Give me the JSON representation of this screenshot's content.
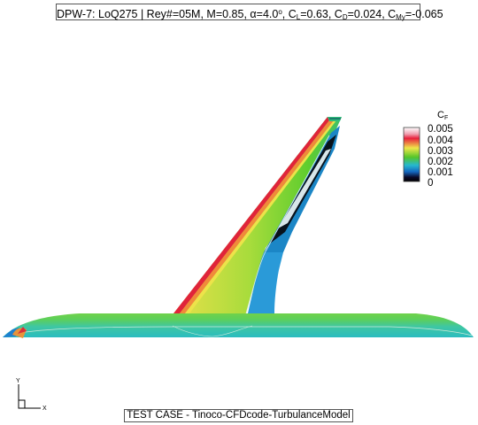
{
  "title": {
    "prefix": "DPW-7: LoQ275 | Rey#=05M, M=0.85, ",
    "alpha_symbol": "α",
    "alpha_value": "=4.0",
    "alpha_unit": "o",
    "cl_sep": ", C",
    "cl_sub": "L",
    "cl_value": "=0.63, C",
    "cd_sub": "D",
    "cd_value": "=0.024, C",
    "cmy_sub": "My",
    "cmy_value": "=-0.065"
  },
  "legend": {
    "variable": "C",
    "variable_sub": "F",
    "levels": [
      "0.005",
      "0.004",
      "0.003",
      "0.002",
      "0.001",
      "0"
    ],
    "colors": [
      "#ffffff",
      "#e81f3c",
      "#efe64a",
      "#55c62a",
      "#26b8cf",
      "#1466c0",
      "#000000"
    ]
  },
  "axes": {
    "y_label": "Y",
    "x_label": "X"
  },
  "footer": "TEST CASE - Tinoco-CFDcode-TurbulanceModel"
}
